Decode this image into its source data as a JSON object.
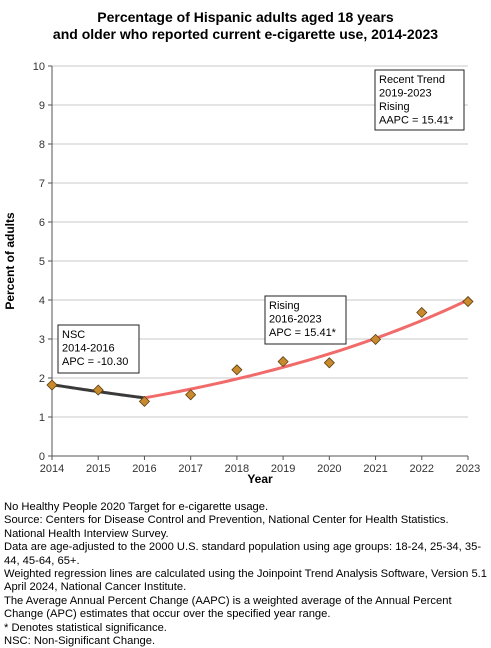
{
  "title_lines": [
    "Percentage of Hispanic adults aged 18 years",
    "and older who reported current e-cigarette use, 2014-2023"
  ],
  "chart_data": {
    "type": "scatter",
    "title": "Percentage of Hispanic adults aged 18 years and older who reported current e-cigarette use, 2014-2023",
    "xlabel": "Year",
    "ylabel": "Percent of adults",
    "xlim": [
      2014,
      2023
    ],
    "ylim": [
      0,
      10
    ],
    "x_ticks": [
      2014,
      2015,
      2016,
      2017,
      2018,
      2019,
      2020,
      2021,
      2022,
      2023
    ],
    "y_ticks": [
      0,
      1,
      2,
      3,
      4,
      5,
      6,
      7,
      8,
      9,
      10
    ],
    "grid": true,
    "points": [
      {
        "x": 2014,
        "y": 1.82
      },
      {
        "x": 2015,
        "y": 1.69
      },
      {
        "x": 2016,
        "y": 1.4
      },
      {
        "x": 2017,
        "y": 1.57
      },
      {
        "x": 2018,
        "y": 2.21
      },
      {
        "x": 2019,
        "y": 2.42
      },
      {
        "x": 2020,
        "y": 2.39
      },
      {
        "x": 2021,
        "y": 2.99
      },
      {
        "x": 2022,
        "y": 3.68
      },
      {
        "x": 2023,
        "y": 3.96
      }
    ],
    "trend_segments": [
      {
        "start": 2014,
        "end": 2016,
        "apc": -10.3,
        "color": "#3a3a3a",
        "y_start": 1.83,
        "y_end": 1.49
      },
      {
        "start": 2016,
        "end": 2023,
        "apc": 15.41,
        "color": "#f26b6b",
        "y_start": 1.49,
        "y_end": 4.0
      }
    ],
    "point_color": "#c98a2e",
    "annotations": [
      {
        "lines": [
          "NSC",
          "2014-2016",
          "APC = -10.30"
        ]
      },
      {
        "lines": [
          "Rising",
          "2016-2023",
          "APC = 15.41*"
        ]
      },
      {
        "lines": [
          "Recent Trend",
          "2019-2023",
          "Rising",
          "AAPC = 15.41*"
        ]
      }
    ]
  },
  "footnotes": [
    "No Healthy People 2020 Target for e-cigarette usage.",
    "Source: Centers for Disease Control and Prevention, National Center for Health Statistics. National Health Interview Survey.",
    "Data are age-adjusted to the 2000 U.S. standard population using age groups: 18-24, 25-34, 35-44, 45-64, 65+.",
    "Weighted regression lines are calculated using the Joinpoint Trend Analysis Software, Version 5.1 April 2024, National Cancer Institute.",
    "The Average Annual Percent Change (AAPC) is a weighted average of the Annual Percent Change (APC) estimates that occur over the specified year range.",
    "* Denotes statistical significance.",
    "NSC: Non-Significant Change."
  ]
}
